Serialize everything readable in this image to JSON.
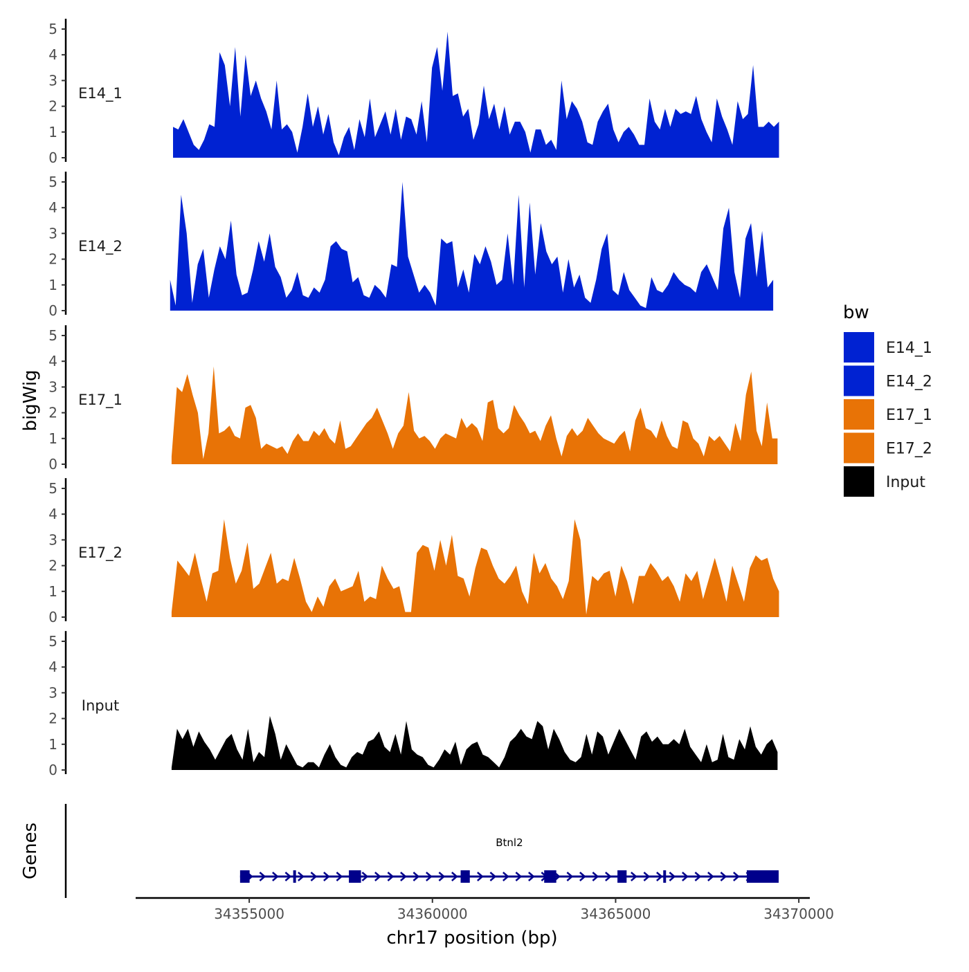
{
  "chart_data": {
    "type": "area",
    "title": "",
    "ylabel": "bigWig",
    "xlabel": "chr17 position (bp)",
    "genes_panel_label": "Genes",
    "ylim": [
      0,
      5
    ],
    "yticks": [
      "0",
      "1",
      "2",
      "3",
      "4",
      "5"
    ],
    "xlim": [
      34351900,
      34370300
    ],
    "xticks": [
      {
        "value": 34355000,
        "label": "34355000"
      },
      {
        "value": 34360000,
        "label": "34360000"
      },
      {
        "value": 34365000,
        "label": "34365000"
      },
      {
        "value": 34370000,
        "label": "34370000"
      }
    ],
    "legend": {
      "title": "bw",
      "position": "right",
      "entries": [
        {
          "label": "E14_1",
          "color": "#0022D2"
        },
        {
          "label": "E14_2",
          "color": "#0022D2"
        },
        {
          "label": "E17_1",
          "color": "#E87306"
        },
        {
          "label": "E17_2",
          "color": "#E87306"
        },
        {
          "label": "Input",
          "color": "#000000"
        }
      ]
    },
    "series": [
      {
        "name": "E14_1",
        "color": "#0022D2",
        "x_start": 34352920,
        "x_end": 34369460,
        "values": [
          1.2,
          1.1,
          1.5,
          1.0,
          0.5,
          0.3,
          0.7,
          1.3,
          1.2,
          4.1,
          3.6,
          2.0,
          4.3,
          1.6,
          4.0,
          2.4,
          3.0,
          2.3,
          1.8,
          1.1,
          3.0,
          1.1,
          1.3,
          1.0,
          0.2,
          1.2,
          2.5,
          1.2,
          2.0,
          0.9,
          1.7,
          0.6,
          0.1,
          0.8,
          1.2,
          0.3,
          1.5,
          0.8,
          2.3,
          0.8,
          1.3,
          1.8,
          0.9,
          1.9,
          0.7,
          1.6,
          1.5,
          0.9,
          2.2,
          0.6,
          3.5,
          4.3,
          2.6,
          4.9,
          2.4,
          2.5,
          1.6,
          1.9,
          0.7,
          1.3,
          2.8,
          1.5,
          2.1,
          1.1,
          2.0,
          0.9,
          1.4,
          1.4,
          1.0,
          0.2,
          1.1,
          1.1,
          0.5,
          0.7,
          0.3,
          3.0,
          1.5,
          2.2,
          1.9,
          1.4,
          0.6,
          0.5,
          1.4,
          1.8,
          2.1,
          1.1,
          0.6,
          1.0,
          1.2,
          0.9,
          0.5,
          0.5,
          2.3,
          1.4,
          1.1,
          1.9,
          1.2,
          1.9,
          1.7,
          1.8,
          1.7,
          2.4,
          1.5,
          1.0,
          0.6,
          2.3,
          1.6,
          1.1,
          0.5,
          2.2,
          1.5,
          1.7,
          3.6,
          1.2,
          1.2,
          1.4,
          1.2,
          1.4
        ]
      },
      {
        "name": "E14_2",
        "color": "#0022D2",
        "x_start": 34352840,
        "x_end": 34369300,
        "values": [
          1.2,
          0.2,
          4.5,
          3.0,
          0.3,
          1.8,
          2.4,
          0.5,
          1.6,
          2.5,
          2.0,
          3.5,
          1.4,
          0.6,
          0.7,
          1.6,
          2.7,
          1.9,
          3.0,
          1.7,
          1.3,
          0.5,
          0.8,
          1.5,
          0.6,
          0.5,
          0.9,
          0.7,
          1.2,
          2.5,
          2.7,
          2.4,
          2.3,
          1.1,
          1.3,
          0.6,
          0.5,
          1.0,
          0.8,
          0.5,
          1.8,
          1.7,
          5.0,
          2.1,
          1.4,
          0.7,
          1.0,
          0.7,
          0.2,
          2.8,
          2.6,
          2.7,
          0.9,
          1.6,
          0.7,
          2.2,
          1.8,
          2.5,
          1.9,
          1.0,
          1.2,
          3.0,
          1.0,
          4.5,
          0.9,
          4.2,
          1.4,
          3.4,
          2.3,
          1.8,
          2.1,
          0.7,
          2.0,
          0.9,
          1.4,
          0.5,
          0.3,
          1.2,
          2.4,
          3.0,
          0.8,
          0.6,
          1.5,
          0.8,
          0.5,
          0.2,
          0.1,
          1.3,
          0.8,
          0.7,
          1.0,
          1.5,
          1.2,
          1.0,
          0.9,
          0.7,
          1.5,
          1.8,
          1.3,
          0.8,
          3.2,
          4.0,
          1.5,
          0.5,
          2.8,
          3.4,
          1.3,
          3.1,
          0.9,
          1.2
        ]
      },
      {
        "name": "E17_1",
        "color": "#E87306",
        "x_start": 34352880,
        "x_end": 34369420,
        "values": [
          0.3,
          3.0,
          2.8,
          3.5,
          2.7,
          2.0,
          0.2,
          1.2,
          3.8,
          1.2,
          1.3,
          1.5,
          1.1,
          1.0,
          2.2,
          2.3,
          1.8,
          0.6,
          0.8,
          0.7,
          0.6,
          0.7,
          0.4,
          0.9,
          1.2,
          0.9,
          0.9,
          1.3,
          1.1,
          1.4,
          1.0,
          0.8,
          1.7,
          0.6,
          0.7,
          1.0,
          1.3,
          1.6,
          1.8,
          2.2,
          1.7,
          1.2,
          0.6,
          1.2,
          1.5,
          2.8,
          1.3,
          1.0,
          1.1,
          0.9,
          0.6,
          1.0,
          1.2,
          1.1,
          1.0,
          1.8,
          1.4,
          1.6,
          1.4,
          0.9,
          2.4,
          2.5,
          1.4,
          1.2,
          1.4,
          2.3,
          1.9,
          1.6,
          1.2,
          1.3,
          0.9,
          1.5,
          1.9,
          1.0,
          0.3,
          1.1,
          1.4,
          1.1,
          1.3,
          1.8,
          1.5,
          1.2,
          1.0,
          0.9,
          0.8,
          1.1,
          1.3,
          0.5,
          1.7,
          2.2,
          1.4,
          1.3,
          1.0,
          1.7,
          1.1,
          0.7,
          0.6,
          1.7,
          1.6,
          1.0,
          0.8,
          0.3,
          1.1,
          0.9,
          1.1,
          0.8,
          0.5,
          1.6,
          0.9,
          2.7,
          3.6,
          1.3,
          0.7,
          2.4,
          1.0,
          1.0
        ]
      },
      {
        "name": "E17_2",
        "color": "#E87306",
        "x_start": 34352880,
        "x_end": 34369460,
        "values": [
          0.2,
          2.2,
          1.9,
          1.6,
          2.5,
          1.5,
          0.6,
          1.7,
          1.8,
          3.8,
          2.3,
          1.3,
          1.8,
          2.9,
          1.1,
          1.3,
          1.9,
          2.5,
          1.3,
          1.5,
          1.4,
          2.3,
          1.5,
          0.6,
          0.2,
          0.8,
          0.4,
          1.2,
          1.5,
          1.0,
          1.1,
          1.2,
          1.8,
          0.6,
          0.8,
          0.7,
          2.0,
          1.5,
          1.1,
          1.2,
          0.2,
          0.2,
          2.5,
          2.8,
          2.7,
          1.8,
          3.0,
          2.0,
          3.2,
          1.6,
          1.5,
          0.8,
          1.9,
          2.7,
          2.6,
          2.0,
          1.5,
          1.3,
          1.6,
          2.0,
          1.0,
          0.5,
          2.5,
          1.7,
          2.1,
          1.5,
          1.2,
          0.7,
          1.4,
          3.8,
          3.0,
          0.1,
          1.6,
          1.4,
          1.7,
          1.8,
          0.8,
          2.0,
          1.4,
          0.5,
          1.6,
          1.6,
          2.1,
          1.8,
          1.4,
          1.6,
          1.2,
          0.6,
          1.7,
          1.4,
          1.8,
          0.7,
          1.5,
          2.3,
          1.5,
          0.6,
          2.0,
          1.3,
          0.6,
          1.9,
          2.4,
          2.2,
          2.3,
          1.5,
          1.0
        ]
      },
      {
        "name": "Input",
        "color": "#000000",
        "x_start": 34352880,
        "x_end": 34369420,
        "values": [
          0.1,
          1.6,
          1.2,
          1.6,
          0.9,
          1.5,
          1.1,
          0.8,
          0.4,
          0.8,
          1.2,
          1.4,
          0.8,
          0.4,
          1.6,
          0.3,
          0.7,
          0.5,
          2.1,
          1.4,
          0.4,
          1.0,
          0.6,
          0.2,
          0.1,
          0.3,
          0.3,
          0.1,
          0.6,
          1.0,
          0.5,
          0.2,
          0.1,
          0.5,
          0.7,
          0.6,
          1.1,
          1.2,
          1.5,
          0.9,
          0.7,
          1.4,
          0.6,
          1.9,
          0.8,
          0.6,
          0.5,
          0.2,
          0.1,
          0.4,
          0.8,
          0.6,
          1.1,
          0.2,
          0.8,
          1.0,
          1.1,
          0.6,
          0.5,
          0.3,
          0.1,
          0.5,
          1.1,
          1.3,
          1.6,
          1.3,
          1.2,
          1.9,
          1.7,
          0.8,
          1.6,
          1.2,
          0.7,
          0.4,
          0.3,
          0.5,
          1.4,
          0.6,
          1.5,
          1.3,
          0.6,
          1.1,
          1.6,
          1.2,
          0.8,
          0.4,
          1.3,
          1.5,
          1.1,
          1.3,
          1.0,
          1.0,
          1.2,
          1.0,
          1.6,
          0.9,
          0.6,
          0.3,
          1.0,
          0.3,
          0.4,
          1.4,
          0.5,
          0.4,
          1.2,
          0.8,
          1.7,
          0.9,
          0.6,
          1.0,
          1.2,
          0.7
        ]
      }
    ],
    "gene": {
      "name": "Btnl2",
      "color": "#00008B",
      "strand": "+",
      "start": 34354750,
      "end": 34369450,
      "exons": [
        [
          34354750,
          34355010
        ],
        [
          34356200,
          34356260
        ],
        [
          34357720,
          34358050
        ],
        [
          34360770,
          34361020
        ],
        [
          34363050,
          34363380
        ],
        [
          34365050,
          34365300
        ],
        [
          34366300,
          34366370
        ],
        [
          34368580,
          34369450
        ]
      ]
    }
  }
}
